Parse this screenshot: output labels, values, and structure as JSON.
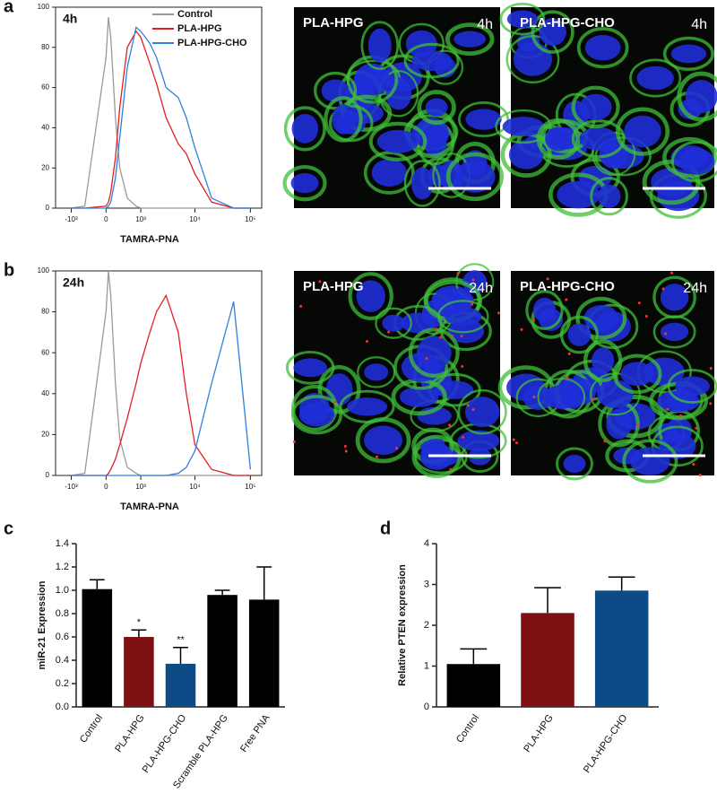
{
  "panel_labels": [
    "a",
    "b",
    "c",
    "d"
  ],
  "images": [
    {
      "label": "PLA-HPG",
      "time": "4h"
    },
    {
      "label": "PLA-HPG-CHO",
      "time": "4h"
    },
    {
      "label": "PLA-HPG",
      "time": "24h"
    },
    {
      "label": "PLA-HPG-CHO",
      "time": "24h"
    }
  ],
  "chart_data": [
    {
      "type": "line",
      "annotation": "4h",
      "xlabel": "TAMRA-PNA",
      "xscale": "biexponential",
      "x": [
        -1000,
        -500,
        0,
        50,
        100,
        200,
        300,
        500,
        800,
        1000,
        1500,
        2000,
        3000,
        5000,
        7000,
        10000,
        20000,
        50000,
        100000
      ],
      "xlim": [
        -2000,
        160000
      ],
      "xticks": [
        {
          "value": -1000,
          "label": "-10³"
        },
        0,
        {
          "value": 1000,
          "label": "10³"
        },
        {
          "value": 10000,
          "label": "10⁴"
        },
        {
          "value": 100000,
          "label": "10⁵"
        }
      ],
      "ylim": [
        0,
        100
      ],
      "yticks": [
        0,
        20,
        40,
        60,
        80,
        100
      ],
      "legend": "top-right",
      "series": [
        {
          "name": "Control",
          "color": "#999999",
          "values": [
            0,
            1,
            75,
            95,
            85,
            45,
            20,
            5,
            1,
            0,
            0,
            0,
            0,
            0,
            0,
            0,
            0,
            0,
            0
          ]
        },
        {
          "name": "PLA-HPG",
          "color": "#e02020",
          "values": [
            0,
            0,
            1,
            3,
            8,
            25,
            50,
            80,
            88,
            85,
            72,
            62,
            45,
            32,
            27,
            17,
            3,
            0,
            0
          ]
        },
        {
          "name": "PLA-HPG-CHO",
          "color": "#2f7fe0",
          "values": [
            0,
            0,
            0,
            1,
            3,
            15,
            35,
            70,
            90,
            88,
            82,
            75,
            60,
            55,
            45,
            30,
            5,
            0,
            0
          ]
        }
      ]
    },
    {
      "type": "line",
      "annotation": "24h",
      "xlabel": "TAMRA-PNA",
      "xscale": "biexponential",
      "x": [
        -1000,
        -500,
        0,
        50,
        100,
        200,
        300,
        500,
        800,
        1000,
        1500,
        2000,
        3000,
        5000,
        7000,
        10000,
        20000,
        50000,
        100000
      ],
      "xlim": [
        -2000,
        160000
      ],
      "xticks": [
        {
          "value": -1000,
          "label": "-10³"
        },
        0,
        {
          "value": 1000,
          "label": "10³"
        },
        {
          "value": 10000,
          "label": "10⁴"
        },
        {
          "value": 100000,
          "label": "10⁵"
        }
      ],
      "ylim": [
        0,
        100
      ],
      "yticks": [
        0,
        20,
        40,
        60,
        80,
        100
      ],
      "series": [
        {
          "color": "#999999",
          "values": [
            0,
            1,
            80,
            100,
            88,
            45,
            18,
            4,
            1,
            0,
            0,
            0,
            0,
            0,
            0,
            0,
            0,
            0,
            0
          ]
        },
        {
          "color": "#e02020",
          "values": [
            0,
            0,
            0,
            1,
            3,
            8,
            15,
            28,
            45,
            55,
            70,
            80,
            88,
            70,
            40,
            15,
            3,
            0,
            0
          ]
        },
        {
          "color": "#2f7fe0",
          "values": [
            0,
            0,
            0,
            0,
            0,
            0,
            0,
            0,
            0,
            0,
            0,
            0,
            0,
            1,
            4,
            12,
            45,
            85,
            3
          ]
        }
      ]
    },
    {
      "type": "bar",
      "ylabel": "miR-21 Expression",
      "categories": [
        "Control",
        "PLA-HPG",
        "PLA-HPG-CHO",
        "Scramble PLA-HPG",
        "Free PNA"
      ],
      "values": [
        1.01,
        0.6,
        0.37,
        0.96,
        0.92
      ],
      "errors": [
        0.08,
        0.06,
        0.14,
        0.04,
        0.28
      ],
      "colors": [
        "#000000",
        "#7e0f12",
        "#0e4a86",
        "#000000",
        "#000000"
      ],
      "value_annotations": [
        null,
        "*",
        "**",
        null,
        null
      ],
      "ylim": [
        0,
        1.4
      ],
      "yticks": [
        {
          "value": 0,
          "label": "0.0"
        },
        0.2,
        0.4,
        0.6,
        0.8,
        {
          "value": 1,
          "label": "1.0"
        },
        1.2,
        1.4
      ]
    },
    {
      "type": "bar",
      "ylabel": "Relative PTEN expression",
      "categories": [
        "Control",
        "PLA-HPG",
        "PLA-HPG-CHO"
      ],
      "values": [
        1.05,
        2.3,
        2.85
      ],
      "errors": [
        0.37,
        0.62,
        0.33
      ],
      "colors": [
        "#000000",
        "#7e0f12",
        "#0e4a86"
      ],
      "ylim": [
        0,
        4
      ],
      "yticks": [
        0,
        1,
        2,
        3,
        4
      ]
    }
  ]
}
